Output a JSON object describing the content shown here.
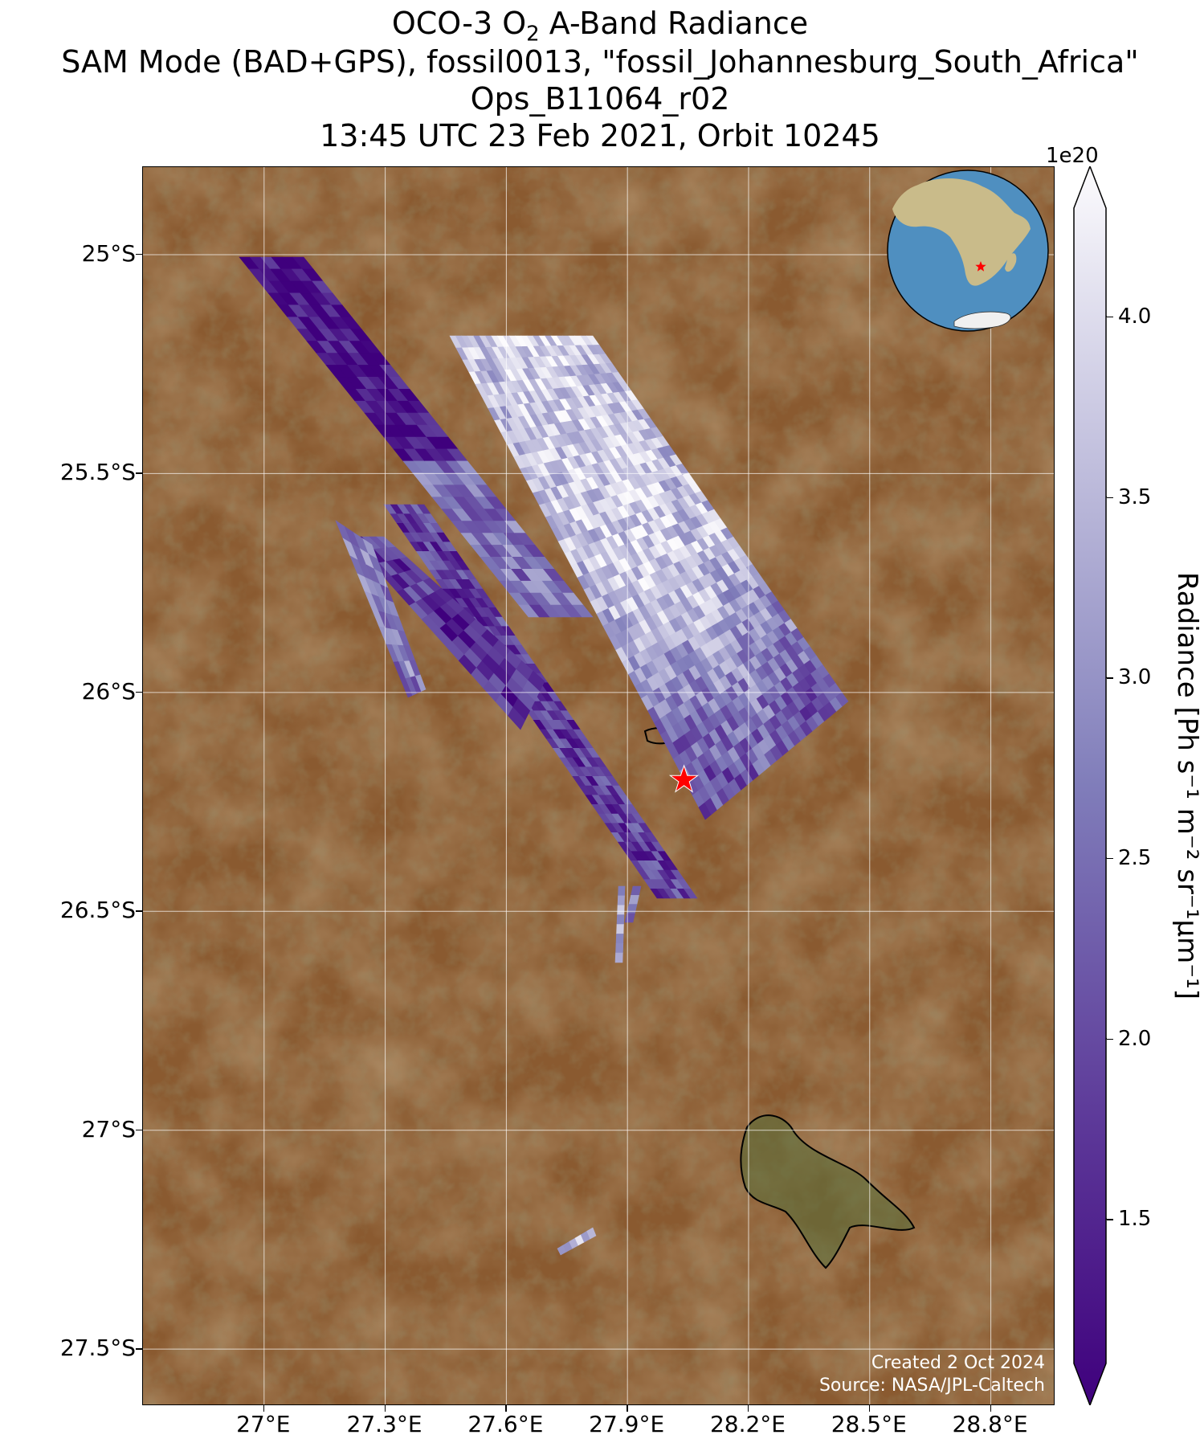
{
  "title": {
    "line1_pre": "OCO-3 O",
    "line1_sub": "2",
    "line1_post": " A-Band Radiance",
    "line2": "SAM Mode (BAD+GPS), fossil0013, \"fossil_Johannesburg_South_Africa\"",
    "line3": "Ops_B11064_r02",
    "line4": "13:45 UTC 23 Feb 2021, Orbit 10245"
  },
  "map": {
    "lat_labels": [
      "25°S",
      "25.5°S",
      "26°S",
      "26.5°S",
      "27°S",
      "27.5°S"
    ],
    "lon_labels": [
      "27°E",
      "27.3°E",
      "27.6°E",
      "27.9°E",
      "28.2°E",
      "28.5°E",
      "28.8°E"
    ],
    "lat_ticks": [
      -25.0,
      -25.5,
      -26.0,
      -26.5,
      -27.0,
      -27.5
    ],
    "lon_ticks": [
      27.0,
      27.3,
      27.6,
      27.9,
      28.2,
      28.5,
      28.8
    ],
    "extent": {
      "lon": [
        26.7,
        28.96
      ],
      "lat": [
        -24.8,
        -27.63
      ]
    },
    "target_marker": {
      "lon": 28.04,
      "lat": -26.2,
      "color": "#ff0000"
    },
    "background_color": "#8a5a30",
    "gridline_color": "#ffffff"
  },
  "colorbar": {
    "exponent_label": "1e20",
    "tick_labels": [
      "1.5",
      "2.0",
      "2.5",
      "3.0",
      "3.5",
      "4.0"
    ],
    "tick_values": [
      1.5,
      2.0,
      2.5,
      3.0,
      3.5,
      4.0
    ],
    "range": [
      1.1,
      4.3
    ],
    "colormap": "Purples_r",
    "color_low": "#3f007d",
    "color_mid": "#807dba",
    "color_high": "#fcfbfd",
    "label": "Radiance [Ph s⁻¹ m⁻² sr⁻¹μm⁻¹]"
  },
  "credits": {
    "created": "Created 2 Oct 2024",
    "source": "Source: NASA/JPL-Caltech"
  },
  "inset_globe": {
    "ocean_color": "#4f8fc0",
    "land_color": "#c9bb8a",
    "marker_color": "#ff0000"
  }
}
